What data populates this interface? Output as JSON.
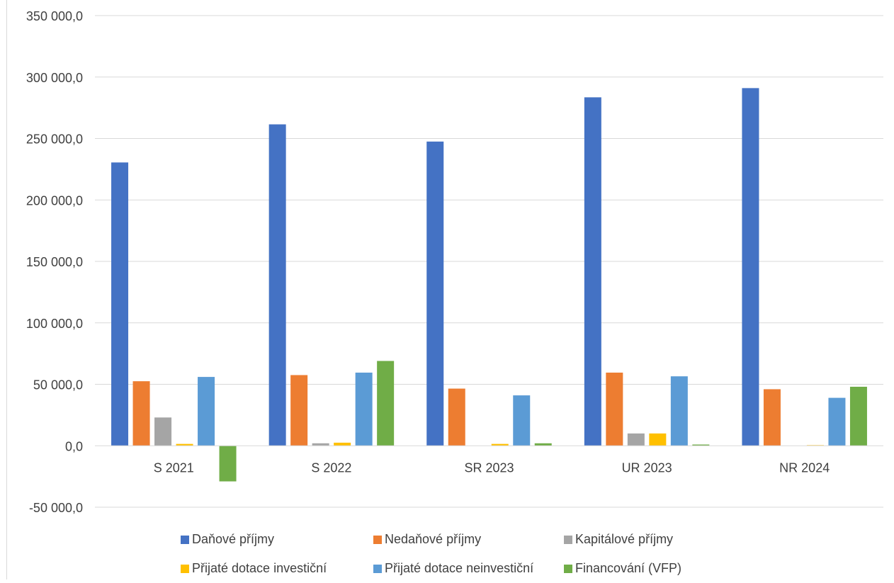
{
  "chart_data": {
    "type": "bar",
    "title": "",
    "xlabel": "",
    "ylabel": "",
    "categories": [
      "S 2021",
      "S 2022",
      "SR 2023",
      "UR 2023",
      "NR 2024"
    ],
    "y_ticks": [
      "350 000,0",
      "300 000,0",
      "250 000,0",
      "200 000,0",
      "150 000,0",
      "100 000,0",
      "50 000,0",
      "0,0",
      "-50 000,0"
    ],
    "ylim": [
      -50000,
      350000
    ],
    "grid": true,
    "legend_position": "bottom",
    "series": [
      {
        "name": "Daňové příjmy",
        "color": "#4472C4",
        "values": [
          230500,
          261500,
          247500,
          283500,
          291000
        ]
      },
      {
        "name": "Nedaňové příjmy",
        "color": "#ED7D31",
        "values": [
          52500,
          57500,
          46500,
          59500,
          46000
        ]
      },
      {
        "name": "Kapitálové příjmy",
        "color": "#A5A5A5",
        "values": [
          23000,
          2000,
          0,
          10000,
          0
        ]
      },
      {
        "name": "Přijaté dotace investiční",
        "color": "#FFC000",
        "values": [
          1500,
          2500,
          1500,
          10000,
          500
        ]
      },
      {
        "name": "Přijaté dotace neinvestiční",
        "color": "#5B9BD5",
        "values": [
          56000,
          59500,
          41000,
          56500,
          39000
        ]
      },
      {
        "name": "Financování (VFP)",
        "color": "#70AD47",
        "values": [
          -29000,
          69000,
          2000,
          1000,
          48000
        ]
      }
    ]
  }
}
